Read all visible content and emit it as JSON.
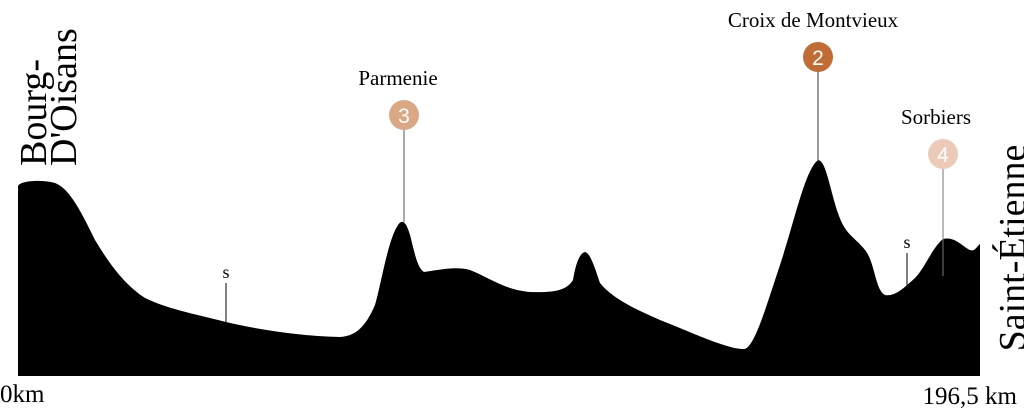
{
  "start": {
    "line1": "Bourg-",
    "line2": "D'Oisans",
    "distance": "0km"
  },
  "finish": {
    "name": "Saint-Étienne",
    "distance": "196,5 km"
  },
  "climbs": [
    {
      "name": "Parmenie",
      "category": "3",
      "color": "#dba886"
    },
    {
      "name": "Croix de Montvieux",
      "category": "2",
      "color": "#c06c34"
    },
    {
      "name": "Sorbiers",
      "category": "4",
      "color": "#ebcbb8"
    }
  ],
  "sprints": [
    {
      "label": "s"
    },
    {
      "label": "s"
    }
  ],
  "profile_color": "#000000"
}
